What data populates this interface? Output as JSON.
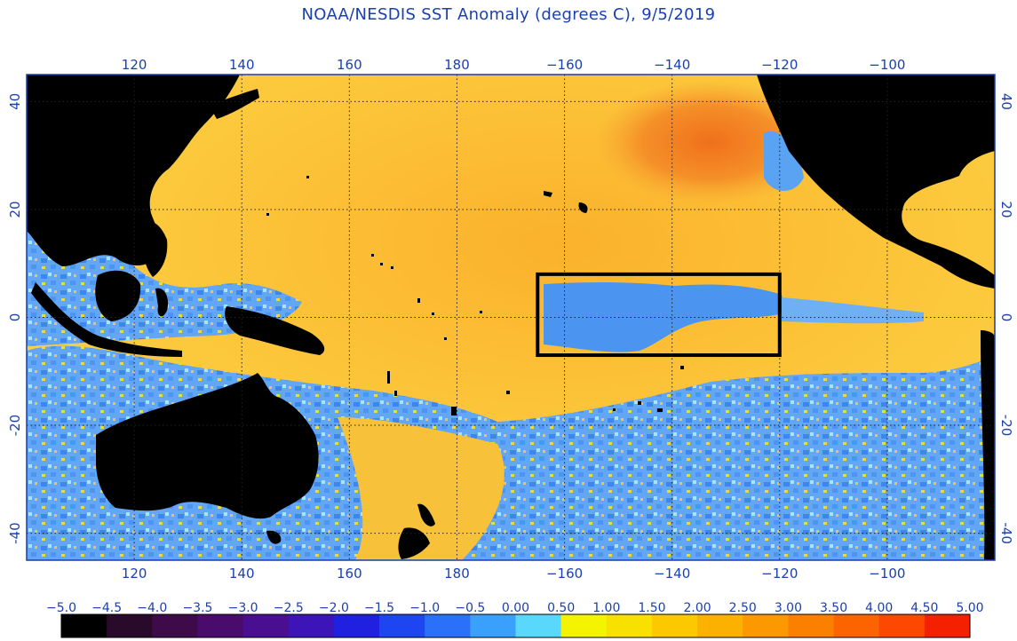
{
  "title": "NOAA/NESDIS SST Anomaly (degrees C), 9/5/2019",
  "map": {
    "lon_range": [
      100,
      280
    ],
    "lat_range": [
      -45,
      45
    ],
    "lon_ticks": [
      {
        "value": 120,
        "label": "120"
      },
      {
        "value": 140,
        "label": "140"
      },
      {
        "value": 160,
        "label": "160"
      },
      {
        "value": 180,
        "label": "180"
      },
      {
        "value": 200,
        "label": "−160"
      },
      {
        "value": 220,
        "label": "−140"
      },
      {
        "value": 240,
        "label": "−120"
      },
      {
        "value": 260,
        "label": "−100"
      }
    ],
    "lat_ticks": [
      {
        "value": 40,
        "label": "40"
      },
      {
        "value": 20,
        "label": "20"
      },
      {
        "value": 0,
        "label": "0"
      },
      {
        "value": -20,
        "label": "-20"
      },
      {
        "value": -40,
        "label": "-40"
      }
    ],
    "highlight_box": {
      "lon_min": 195,
      "lon_max": 240,
      "lat_min": -7,
      "lat_max": 8
    }
  },
  "colorbar": {
    "labels": [
      "−5.0",
      "−4.5",
      "−4.0",
      "−3.5",
      "−3.0",
      "−2.5",
      "−2.0",
      "−1.5",
      "−1.0",
      "−0.5",
      "0.00",
      "0.50",
      "1.00",
      "1.50",
      "2.00",
      "2.50",
      "3.00",
      "3.50",
      "4.00",
      "4.50",
      "5.00"
    ],
    "colors": [
      "#000000",
      "#2a0a2a",
      "#3e0a4a",
      "#4a0c6c",
      "#4a0f90",
      "#3d14b8",
      "#2020e0",
      "#1e46f0",
      "#2a70f8",
      "#3aa0fc",
      "#5ad8fc",
      "#f4f400",
      "#f8e000",
      "#fcc800",
      "#fcb000",
      "#fc9800",
      "#fc8000",
      "#fc6400",
      "#fc4800",
      "#f42000"
    ]
  }
}
